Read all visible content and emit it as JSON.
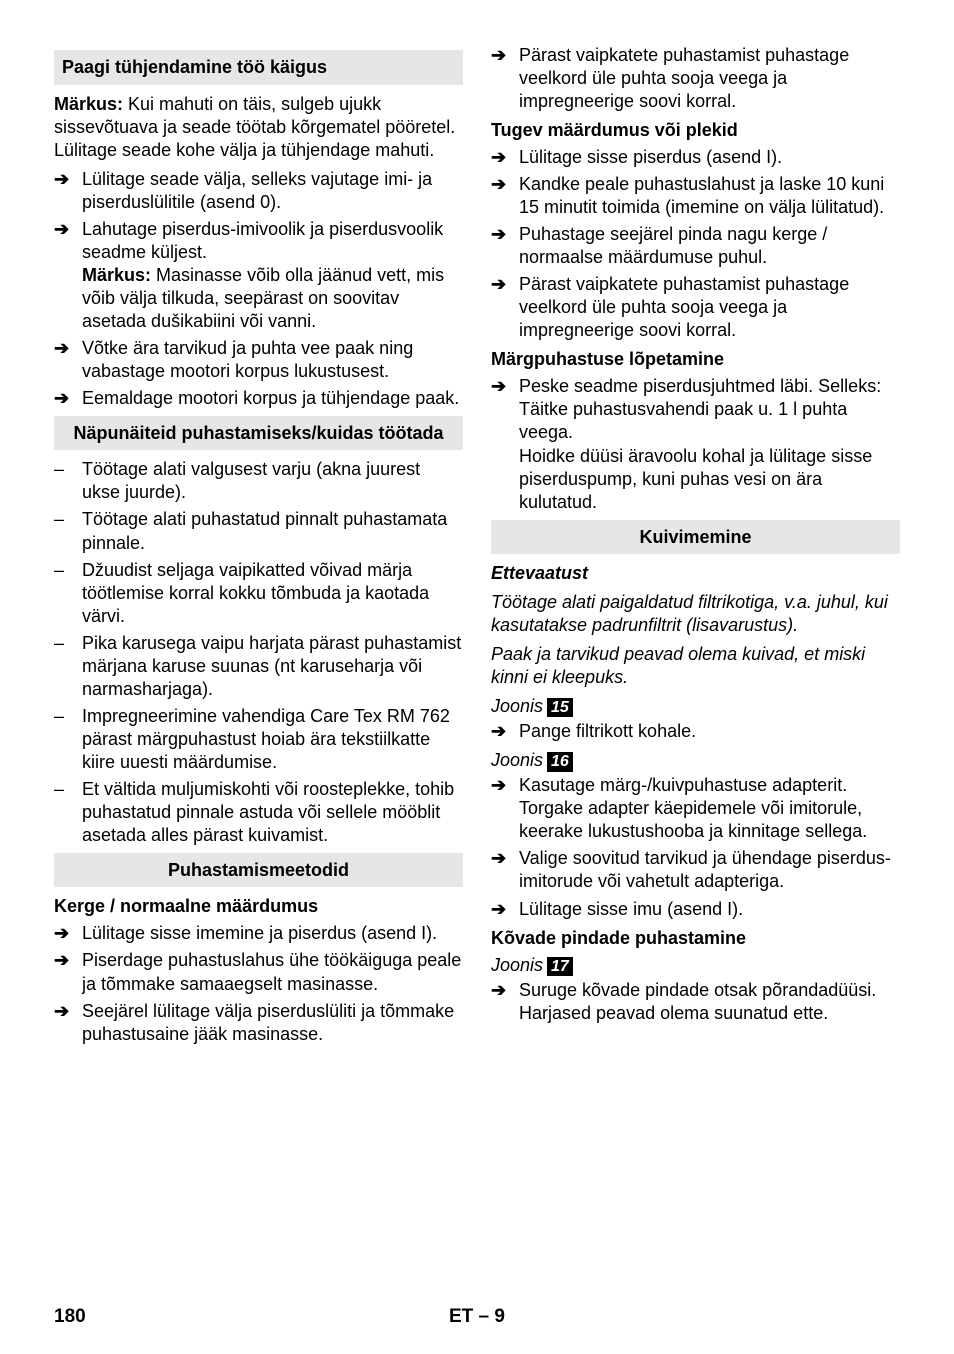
{
  "left": {
    "sec1_header": "Paagi tühjendamine töö käigus",
    "sec1_note": "Märkus: Kui mahuti on täis, sulgeb ujukk sissevõtuava ja seade töötab kõrgematel pööretel. Lülitage seade kohe välja ja tühjendage mahuti.",
    "sec1_note_label": "Märkus:",
    "sec1_note_rest": " Kui mahuti on täis, sulgeb ujukk sissevõtuava ja seade töötab kõrgematel pööretel. Lülitage seade kohe välja ja tühjendage mahuti.",
    "sec1_item1": "Lülitage seade välja, selleks vajutage imi- ja piserduslülitile (asend 0).",
    "sec1_item2_a": "Lahutage piserdus-imivoolik ja piserdusvoolik seadme küljest.",
    "sec1_item2_note_label": "Märkus:",
    "sec1_item2_note_rest": " Masinasse võib olla jäänud vett, mis võib välja tilkuda, seepärast on soovitav asetada dušikabiini või vanni.",
    "sec1_item3": "Võtke ära tarvikud ja puhta vee paak ning vabastage mootori korpus lukustusest.",
    "sec1_item4": "Eemaldage mootori korpus ja tühjendage paak.",
    "sec2_header": "Näpunäiteid puhastamiseks/kuidas töötada",
    "sec2_item1": "Töötage alati valgusest varju (akna juurest ukse juurde).",
    "sec2_item2": "Töötage alati puhastatud pinnalt puhastamata pinnale.",
    "sec2_item3": "Džuudist seljaga vaipikatted võivad märja töötlemise korral kokku tõmbuda ja kaotada värvi.",
    "sec2_item4": "Pika karusega vaipu harjata pärast puhastamist märjana karuse suunas (nt karuseharja või narmasharjaga).",
    "sec2_item5": "Impregneerimine vahendiga Care Tex RM 762 pärast märgpuhastust hoiab ära tekstiilkatte kiire uuesti määrdumise.",
    "sec2_item6": "Et vältida muljumiskohti või roosteplekke, tohib puhastatud pinnale astuda või sellele mööblit asetada alles pärast kuivamist.",
    "sec3_header": "Puhastamismeetodid",
    "sec3_sub1": "Kerge / normaalne määrdumus",
    "sec3_s1_item1": "Lülitage sisse imemine ja piserdus (asend I).",
    "sec3_s1_item2": "Piserdage puhastuslahus ühe töökäiguga peale ja tõmmake samaaegselt masinasse.",
    "sec3_s1_item3": "Seejärel lülitage välja piserduslüliti ja tõmmake puhastusaine jääk masinasse."
  },
  "right": {
    "top_item": "Pärast vaipkatete puhastamist puhastage veelkord üle puhta sooja veega ja impregneerige soovi korral.",
    "h_tugev": "Tugev määrdumus või plekid",
    "tugev_item1": "Lülitage sisse piserdus (asend I).",
    "tugev_item2": "Kandke peale puhastuslahust ja laske 10 kuni 15 minutit toimida (imemine on välja lülitatud).",
    "tugev_item3": "Puhastage seejärel pinda nagu kerge / normaalse määrdumuse puhul.",
    "tugev_item4": "Pärast vaipkatete puhastamist puhastage veelkord üle puhta sooja veega ja impregneerige soovi korral.",
    "h_marg": "Märgpuhastuse lõpetamine",
    "marg_item1_a": "Peske seadme piserdusjuhtmed läbi. Selleks:",
    "marg_item1_b": "Täitke puhastusvahendi paak u. 1 l puhta veega.",
    "marg_item1_c": "Hoidke düüsi äravoolu kohal ja lülitage sisse piserduspump, kuni puhas vesi on ära kulutatud.",
    "sec_kuiv_header": "Kuivimemine",
    "ettev_label": "Ettevaatust",
    "ettev_p1": "Töötage alati paigaldatud filtrikotiga, v.a. juhul, kui kasutatakse padrunfiltrit (lisavarustus).",
    "ettev_p2": "Paak ja tarvikud peavad olema kuivad, et miski kinni ei kleepuks.",
    "joonis_label": "Joonis",
    "joonis_15": "15",
    "joonis_15_item": "Pange filtrikott kohale.",
    "joonis_16": "16",
    "joonis_16_item1": "Kasutage märg-/kuivpuhastuse adapterit. Torgake adapter käepidemele või imitorule, keerake lukustushooba ja kinnitage sellega.",
    "joonis_16_item2": "Valige soovitud tarvikud ja ühendage piserdus-imitorude või vahetult adapteriga.",
    "joonis_16_item3": "Lülitage sisse imu (asend I).",
    "h_kovade": "Kõvade pindade puhastamine",
    "joonis_17": "17",
    "kovade_item": "Suruge kõvade pindade otsak põrandadüüsi. Harjased peavad olema suunatud ette."
  },
  "footer": {
    "page": "180",
    "lang": "ET – 9"
  }
}
